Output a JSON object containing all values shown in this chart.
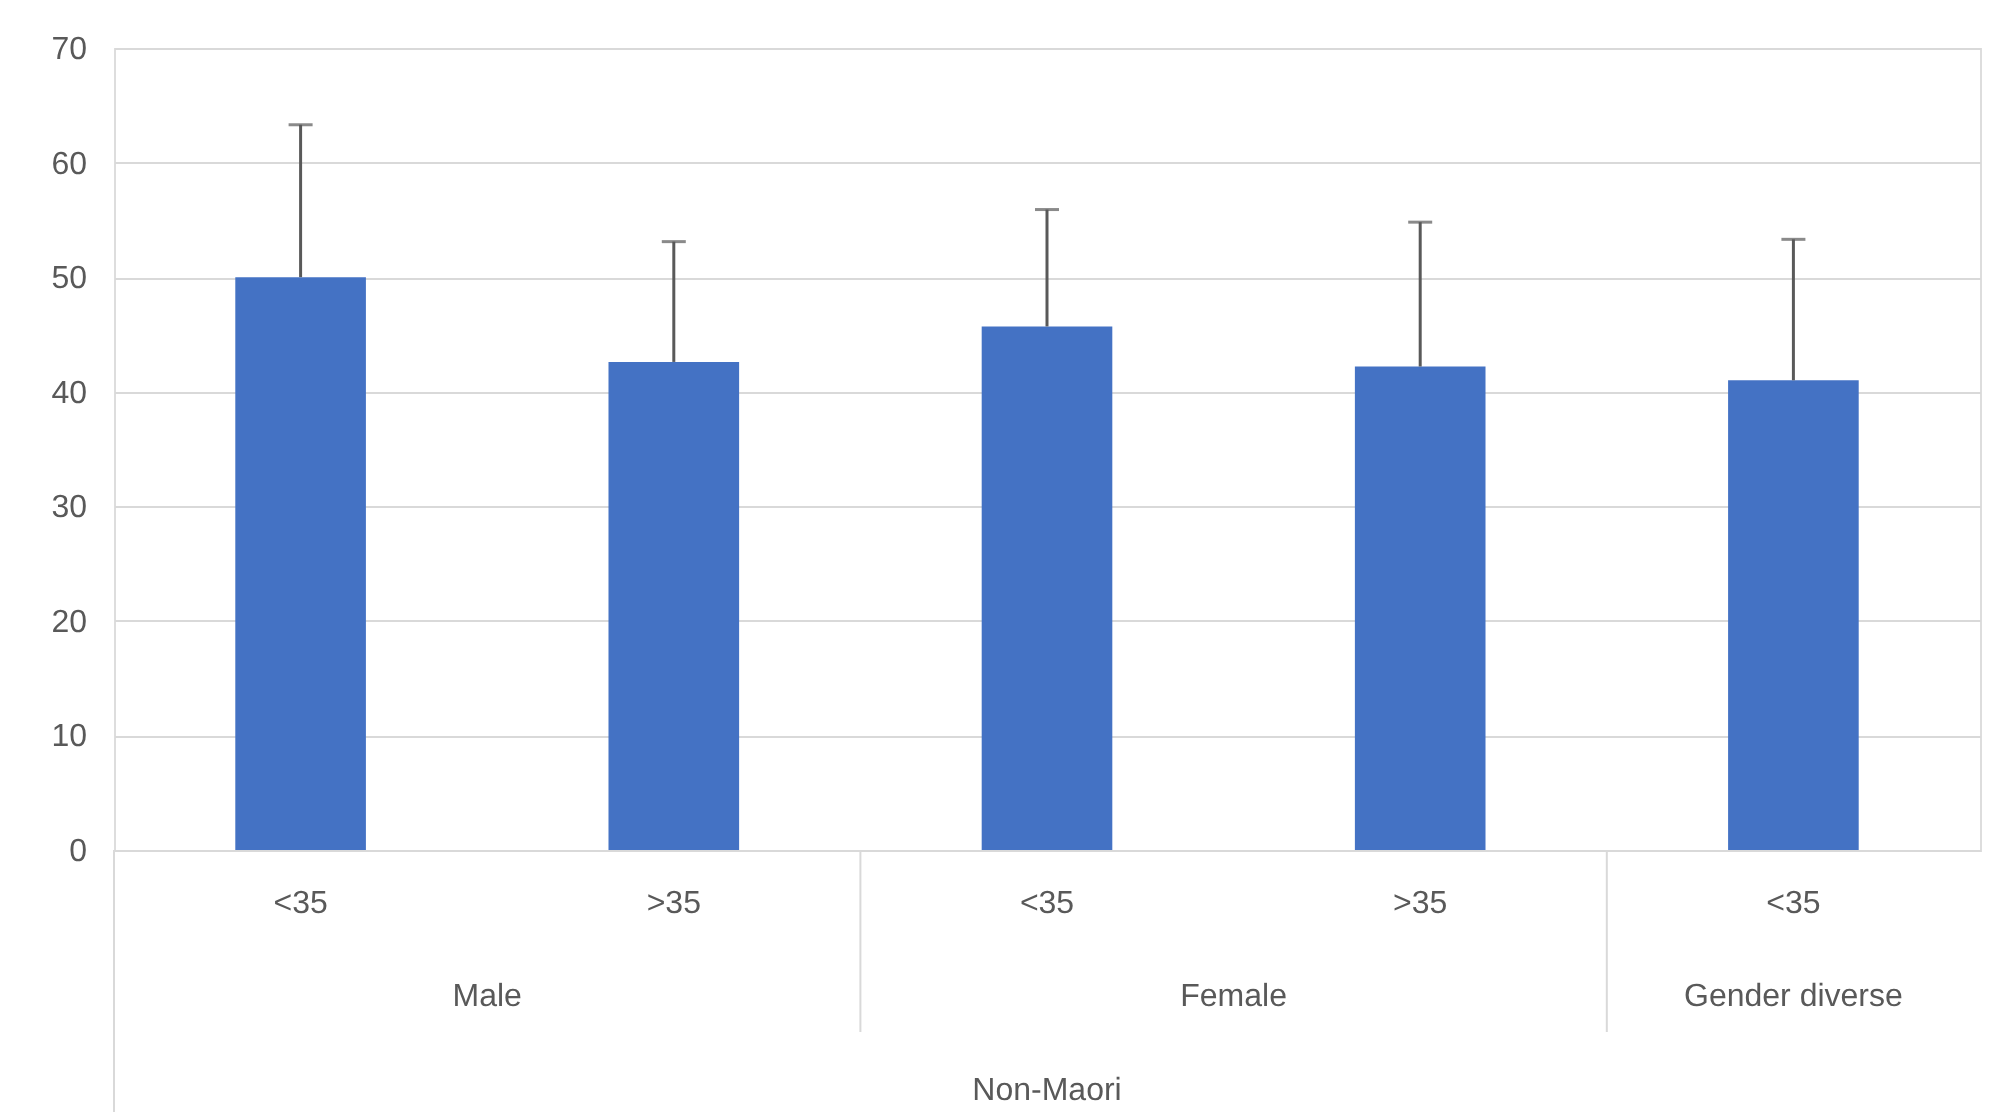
{
  "chart_data": {
    "type": "bar",
    "categories": [
      "<35",
      ">35",
      "<35",
      ">35",
      "<35"
    ],
    "values": [
      50.0,
      42.6,
      45.7,
      42.2,
      41.0
    ],
    "errors": [
      [
        50.0,
        63.3
      ],
      [
        42.6,
        53.1
      ],
      [
        45.7,
        55.9
      ],
      [
        42.2,
        54.8
      ],
      [
        41.0,
        53.3
      ]
    ],
    "color": "#4472c4",
    "annotations": [
      "Male",
      "Female",
      "Gender diverse"
    ],
    "xlabel": "Non-Maori",
    "ylim": [
      0,
      70
    ],
    "yticks": [
      0,
      10,
      20,
      30,
      40,
      50,
      60,
      70
    ],
    "grid": "y"
  }
}
